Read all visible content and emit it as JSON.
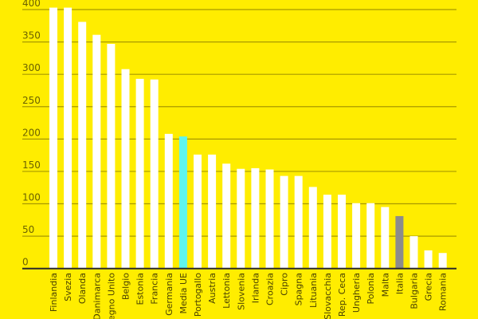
{
  "chart_data": {
    "type": "bar",
    "title": "",
    "xlabel": "",
    "ylabel": "",
    "ylim": [
      0,
      400
    ],
    "yticks": [
      0,
      50,
      100,
      150,
      200,
      250,
      300,
      350,
      400
    ],
    "grid": true,
    "categories": [
      "Finlandia",
      "Svezia",
      "Olanda",
      "Danimarca",
      "Regno Unito",
      "Belgio",
      "Estonia",
      "Francia",
      "Germania",
      "Media UE",
      "Portogallo",
      "Austria",
      "Lettonia",
      "Slovenia",
      "Irlanda",
      "Croazia",
      "Cipro",
      "Spagna",
      "Lituania",
      "Slovacchia",
      "Rep. Ceca",
      "Ungheria",
      "Polonia",
      "Malta",
      "Italia",
      "Bulgaria",
      "Grecia",
      "Romania"
    ],
    "values": [
      403,
      403,
      381,
      361,
      347,
      308,
      293,
      292,
      208,
      204,
      176,
      176,
      162,
      154,
      155,
      153,
      143,
      143,
      126,
      114,
      114,
      101,
      101,
      95,
      81,
      50,
      28,
      24
    ],
    "colors": {
      "default": "#ffffff",
      "highlight_avg": "#5ff5ee",
      "highlight_italy": "#8c8c8c",
      "background": "#ffed00",
      "grid": "#a89a00",
      "axis": "#2a2a2a"
    },
    "highlights": {
      "Media UE": "highlight_avg",
      "Italia": "highlight_italy"
    }
  }
}
